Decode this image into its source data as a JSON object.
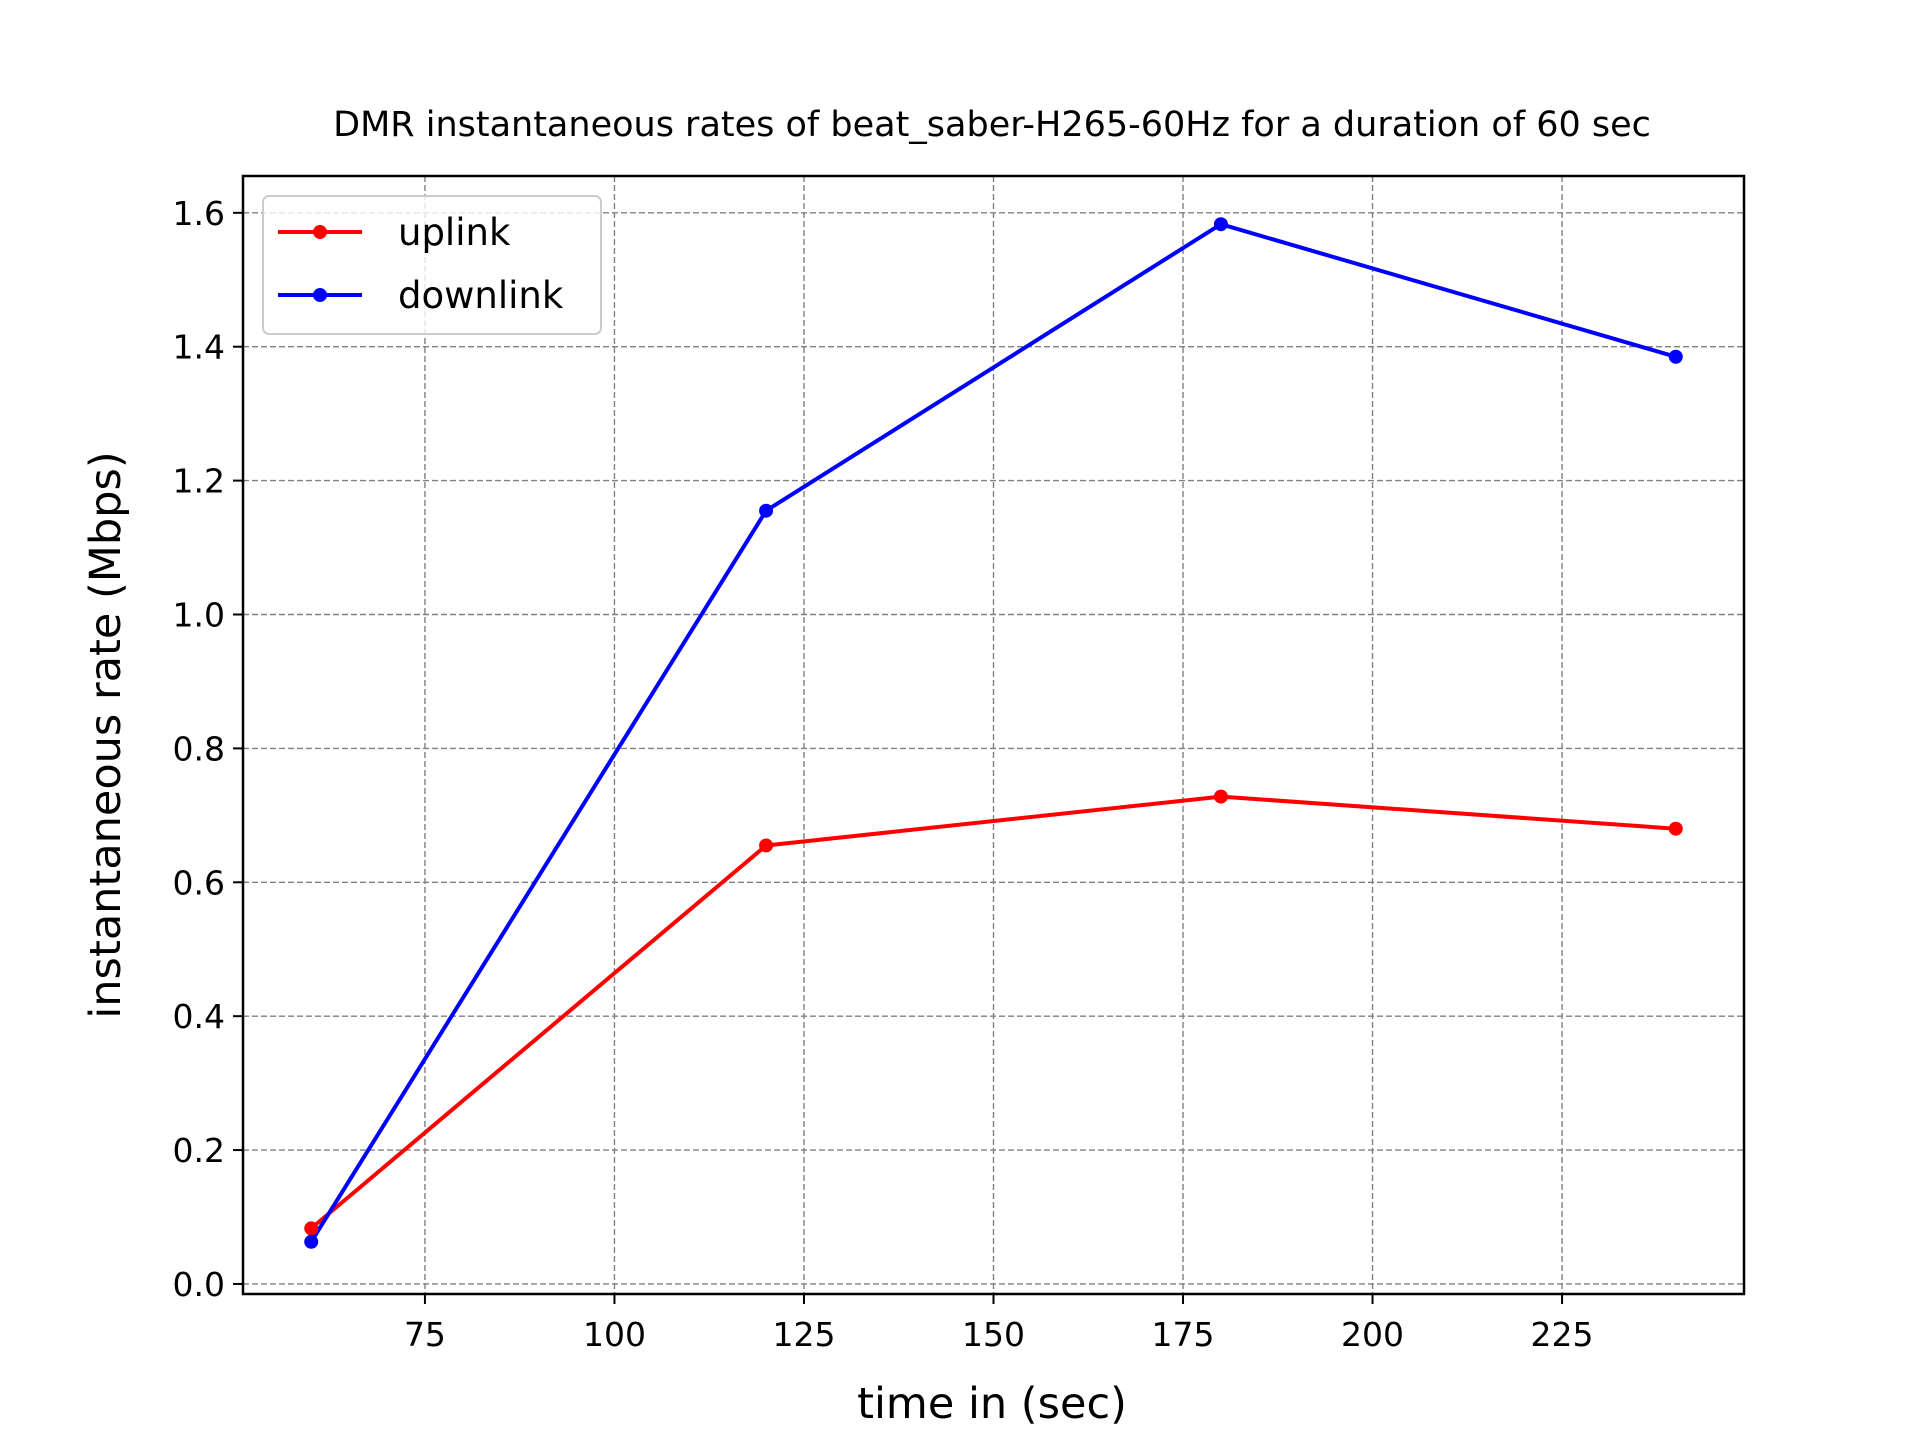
{
  "chart_data": {
    "type": "line",
    "title": "DMR instantaneous rates of beat_saber-H265-60Hz for a duration of 60 sec",
    "xlabel": "time in (sec)",
    "ylabel": "instantaneous rate (Mbps)",
    "xlim": [
      51,
      249
    ],
    "ylim": [
      -0.015,
      1.655
    ],
    "xticks": [
      75,
      100,
      125,
      150,
      175,
      200,
      225
    ],
    "xtick_labels": [
      "75",
      "100",
      "125",
      "150",
      "175",
      "200",
      "225"
    ],
    "yticks": [
      0.0,
      0.2,
      0.4,
      0.6,
      0.8,
      1.0,
      1.2,
      1.4,
      1.6
    ],
    "ytick_labels": [
      "0.0",
      "0.2",
      "0.4",
      "0.6",
      "0.8",
      "1.0",
      "1.2",
      "1.4",
      "1.6"
    ],
    "grid": true,
    "legend_position": "top-left",
    "x": [
      60,
      120,
      180,
      240
    ],
    "series": [
      {
        "name": "uplink",
        "color": "#ff0000",
        "marker": "circle",
        "values": [
          0.083,
          0.655,
          0.728,
          0.68
        ]
      },
      {
        "name": "downlink",
        "color": "#0000ff",
        "marker": "circle",
        "values": [
          0.063,
          1.155,
          1.583,
          1.385
        ]
      }
    ]
  }
}
